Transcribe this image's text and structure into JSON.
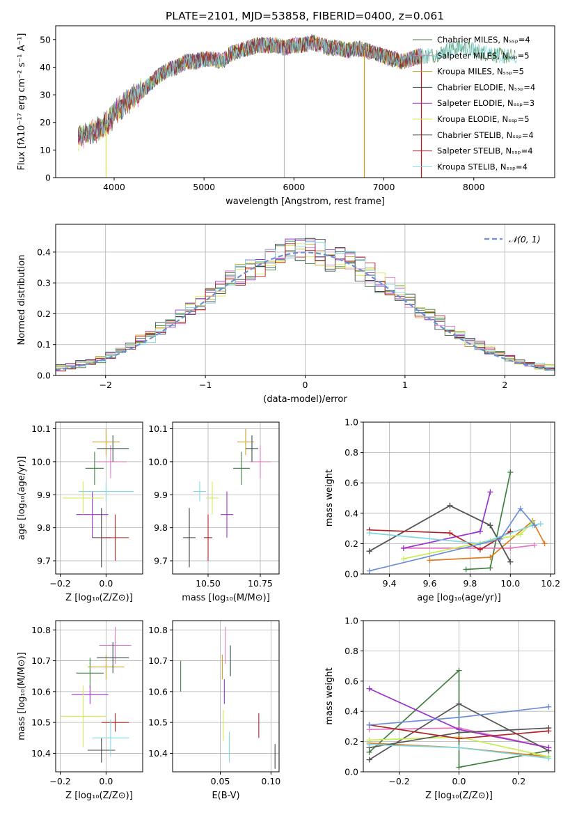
{
  "colors": [
    "#3f7f3f",
    "#e377c2",
    "#c8a02a",
    "#2f4f4f",
    "#9932cc",
    "#d4ea50",
    "#444444",
    "#b22222",
    "#7fd8e0"
  ],
  "chart_data": [
    {
      "id": "spectrum",
      "type": "line",
      "title": "PLATE=2101, MJD=53858, FIBERID=0400, z=0.061",
      "xlabel": "wavelength [Angstrom, rest frame]",
      "ylabel": "Flux [fλ10⁻¹⁷ erg cm⁻² s⁻¹ A⁻¹]",
      "xlim": [
        3350,
        8900
      ],
      "ylim": [
        0,
        55
      ],
      "xticks": [
        4000,
        5000,
        6000,
        7000,
        8000
      ],
      "yticks": [
        0,
        10,
        20,
        30,
        40,
        50
      ],
      "legend_position": "right",
      "series": [
        {
          "name": "Chabrier MILES, Nₛₛₚ=4"
        },
        {
          "name": "Salpeter MILES, Nₛₛₚ=5"
        },
        {
          "name": "Kroupa MILES, Nₛₛₚ=5"
        },
        {
          "name": "Chabrier ELODIE, Nₛₛₚ=4"
        },
        {
          "name": "Salpeter ELODIE, Nₛₛₚ=3"
        },
        {
          "name": "Kroupa ELODIE, Nₛₛₚ=5"
        },
        {
          "name": "Chabrier STELIB, Nₛₛₚ=4"
        },
        {
          "name": "Salpeter STELIB, Nₛₛₚ=4"
        },
        {
          "name": "Kroupa STELIB, Nₛₛₚ=4"
        }
      ],
      "continuum": {
        "x": [
          3600,
          3700,
          3800,
          3900,
          4000,
          4100,
          4200,
          4300,
          4400,
          4500,
          4600,
          4700,
          4800,
          4900,
          5000,
          5100,
          5200,
          5300,
          5400,
          5500,
          5600,
          5700,
          5800,
          5900,
          6000,
          6100,
          6200,
          6300,
          6400,
          6500,
          6600,
          6700,
          6800,
          6900,
          7000,
          7100,
          7200,
          7300,
          7400,
          7500,
          7600,
          7700,
          7800,
          7900,
          8000,
          8100,
          8200,
          8300,
          8400,
          8500
        ],
        "y": [
          14,
          16,
          17,
          19,
          23,
          26,
          29,
          31,
          34,
          37,
          39,
          40,
          42,
          42,
          43,
          43,
          42,
          45,
          46,
          47,
          48,
          48,
          48,
          47,
          48,
          48,
          49,
          48,
          47,
          47,
          46,
          47,
          46,
          45,
          44,
          43,
          42,
          43,
          44,
          44,
          45,
          46,
          47,
          47,
          46,
          45,
          45,
          44,
          44,
          43
        ]
      },
      "spikes_x": [
        3910,
        5893,
        6783,
        7418
      ]
    },
    {
      "id": "residuals",
      "type": "line",
      "xlabel": "(data-model)/error",
      "ylabel": "Normed distribution",
      "xlim": [
        -2.5,
        2.5
      ],
      "ylim": [
        0,
        0.49
      ],
      "xticks": [
        -2,
        -1,
        0,
        1,
        2
      ],
      "yticks": [
        0.0,
        0.1,
        0.2,
        0.3,
        0.4
      ],
      "legend": "𝒩(0, 1)",
      "legend_position": "top-right",
      "gaussian": {
        "mean": 0,
        "sigma": 1
      }
    },
    {
      "id": "age_vs_Z",
      "type": "scatter",
      "xlabel": "Z [log₁₀(Z/Z⊙)]",
      "ylabel": "age  [log₁₀(age/yr)]",
      "xlim": [
        -0.22,
        0.16
      ],
      "ylim": [
        9.66,
        10.12
      ],
      "xticks": [
        -0.2,
        0.0
      ],
      "yticks": [
        9.7,
        9.8,
        9.9,
        10.0,
        10.1
      ],
      "points": [
        {
          "x": -0.05,
          "y": 9.98,
          "xerr": 0.04,
          "yerr": 0.05
        },
        {
          "x": 0.02,
          "y": 10.0,
          "xerr": 0.07,
          "yerr": 0.05
        },
        {
          "x": 0.0,
          "y": 10.06,
          "xerr": 0.06,
          "yerr": 0.04
        },
        {
          "x": 0.03,
          "y": 10.04,
          "xerr": 0.07,
          "yerr": 0.04
        },
        {
          "x": -0.06,
          "y": 9.84,
          "xerr": 0.07,
          "yerr": 0.07
        },
        {
          "x": -0.1,
          "y": 9.89,
          "xerr": 0.09,
          "yerr": 0.05
        },
        {
          "x": -0.02,
          "y": 9.77,
          "xerr": 0.04,
          "yerr": 0.09
        },
        {
          "x": 0.04,
          "y": 9.77,
          "xerr": 0.06,
          "yerr": 0.07
        },
        {
          "x": 0.0,
          "y": 9.91,
          "xerr": 0.12,
          "yerr": 0.03
        }
      ]
    },
    {
      "id": "age_vs_mass",
      "type": "scatter",
      "xlabel": "mass [log₁₀(M/M⊙)]",
      "xlim": [
        10.33,
        10.84
      ],
      "ylim": [
        9.66,
        10.12
      ],
      "xticks": [
        10.5,
        10.75
      ],
      "yticks": [
        9.7,
        9.8,
        9.9,
        10.0,
        10.1
      ],
      "points": [
        {
          "x": 10.66,
          "y": 9.98,
          "xerr": 0.04,
          "yerr": 0.05
        },
        {
          "x": 10.75,
          "y": 10.0,
          "xerr": 0.05,
          "yerr": 0.05
        },
        {
          "x": 10.68,
          "y": 10.06,
          "xerr": 0.04,
          "yerr": 0.04
        },
        {
          "x": 10.71,
          "y": 10.04,
          "xerr": 0.03,
          "yerr": 0.04
        },
        {
          "x": 10.59,
          "y": 9.84,
          "xerr": 0.03,
          "yerr": 0.07
        },
        {
          "x": 10.52,
          "y": 9.89,
          "xerr": 0.03,
          "yerr": 0.05
        },
        {
          "x": 10.41,
          "y": 9.77,
          "xerr": 0.03,
          "yerr": 0.09
        },
        {
          "x": 10.5,
          "y": 9.77,
          "xerr": 0.02,
          "yerr": 0.07
        },
        {
          "x": 10.46,
          "y": 9.91,
          "xerr": 0.03,
          "yerr": 0.03
        }
      ]
    },
    {
      "id": "weight_vs_age",
      "type": "line",
      "xlabel": "age  [log₁₀(age/yr)]",
      "ylabel": "mass weight",
      "xlim": [
        9.27,
        10.22
      ],
      "ylim": [
        0.0,
        1.0
      ],
      "xticks": [
        9.4,
        9.6,
        9.8,
        10.0,
        10.2
      ],
      "yticks": [
        0.0,
        0.2,
        0.4,
        0.6,
        0.8,
        1.0
      ],
      "series": [
        {
          "x": [
            9.78,
            9.9,
            10.0
          ],
          "y": [
            0.03,
            0.04,
            0.67
          ]
        },
        {
          "x": [
            9.47,
            10.0,
            10.12
          ],
          "y": [
            0.17,
            0.17,
            0.19
          ]
        },
        {
          "x": [
            9.6,
            9.9,
            10.11,
            10.17
          ],
          "y": [
            0.09,
            0.11,
            0.35,
            0.2
          ]
        },
        {
          "x": [
            9.3,
            9.7,
            9.9,
            10.0
          ],
          "y": [
            0.15,
            0.45,
            0.32,
            0.08
          ]
        },
        {
          "x": [
            9.47,
            9.85,
            9.9
          ],
          "y": [
            0.17,
            0.28,
            0.54
          ]
        },
        {
          "x": [
            9.47,
            9.9,
            10.05,
            10.11
          ],
          "y": [
            0.1,
            0.22,
            0.26,
            0.34
          ]
        },
        {
          "x": [
            9.3,
            9.7,
            9.9,
            10.0
          ],
          "y": [
            0.15,
            0.45,
            0.32,
            0.08
          ]
        },
        {
          "x": [
            9.3,
            9.7,
            9.85,
            10.0
          ],
          "y": [
            0.29,
            0.27,
            0.16,
            0.28
          ]
        },
        {
          "x": [
            9.3,
            9.85,
            10.11,
            10.15
          ],
          "y": [
            0.27,
            0.2,
            0.32,
            0.33
          ]
        },
        {
          "x": [
            9.3,
            9.95,
            10.05,
            10.12
          ],
          "y": [
            0.02,
            0.23,
            0.43,
            0.32
          ]
        }
      ]
    },
    {
      "id": "mass_vs_Z",
      "type": "scatter",
      "xlabel": "Z [log₁₀(Z/Z⊙)]",
      "ylabel": "mass [log₁₀(M/M⊙)]",
      "xlim": [
        -0.22,
        0.16
      ],
      "ylim": [
        10.34,
        10.83
      ],
      "xticks": [
        -0.2,
        0.0
      ],
      "yticks": [
        10.4,
        10.5,
        10.6,
        10.7,
        10.8
      ],
      "points": [
        {
          "x": -0.07,
          "y": 10.66,
          "xerr": 0.06,
          "yerr": 0.05
        },
        {
          "x": 0.04,
          "y": 10.75,
          "xerr": 0.07,
          "yerr": 0.06
        },
        {
          "x": 0.0,
          "y": 10.68,
          "xerr": 0.08,
          "yerr": 0.04
        },
        {
          "x": 0.03,
          "y": 10.71,
          "xerr": 0.07,
          "yerr": 0.05
        },
        {
          "x": -0.07,
          "y": 10.59,
          "xerr": 0.08,
          "yerr": 0.03
        },
        {
          "x": -0.1,
          "y": 10.52,
          "xerr": 0.1,
          "yerr": 0.1
        },
        {
          "x": -0.02,
          "y": 10.41,
          "xerr": 0.06,
          "yerr": 0.04
        },
        {
          "x": 0.04,
          "y": 10.5,
          "xerr": 0.06,
          "yerr": 0.03
        },
        {
          "x": 0.02,
          "y": 10.45,
          "xerr": 0.08,
          "yerr": 0.06
        }
      ]
    },
    {
      "id": "mass_vs_EBV",
      "type": "scatter",
      "xlabel": "E(B-V)",
      "xlim": [
        0.003,
        0.108
      ],
      "ylim": [
        10.34,
        10.83
      ],
      "xticks": [
        0.05,
        0.1
      ],
      "yticks": [
        10.4,
        10.5,
        10.6,
        10.7,
        10.8
      ],
      "points": [
        {
          "x": 0.011,
          "y": 10.65,
          "xerr": 0,
          "yerr": 0.05
        },
        {
          "x": 0.055,
          "y": 10.75,
          "xerr": 0,
          "yerr": 0.06
        },
        {
          "x": 0.052,
          "y": 10.68,
          "xerr": 0,
          "yerr": 0.04
        },
        {
          "x": 0.06,
          "y": 10.7,
          "xerr": 0,
          "yerr": 0.05
        },
        {
          "x": 0.054,
          "y": 10.6,
          "xerr": 0,
          "yerr": 0.04
        },
        {
          "x": 0.053,
          "y": 10.49,
          "xerr": 0,
          "yerr": 0.05
        },
        {
          "x": 0.104,
          "y": 10.39,
          "xerr": 0,
          "yerr": 0.04
        },
        {
          "x": 0.088,
          "y": 10.49,
          "xerr": 0,
          "yerr": 0.04
        },
        {
          "x": 0.059,
          "y": 10.42,
          "xerr": 0,
          "yerr": 0.05
        }
      ]
    },
    {
      "id": "weight_vs_Z",
      "type": "line",
      "xlabel": "Z [log₁₀(Z/Z⊙)]",
      "ylabel": "mass weight",
      "xlim": [
        -0.32,
        0.32
      ],
      "ylim": [
        0.0,
        1.0
      ],
      "xticks": [
        -0.2,
        0.0,
        0.2
      ],
      "yticks": [
        0.0,
        0.2,
        0.4,
        0.6,
        0.8,
        1.0
      ],
      "series": [
        {
          "x": [
            -0.3,
            0.0,
            0.0,
            0.3
          ],
          "y": [
            0.13,
            0.67,
            0.03,
            0.14
          ]
        },
        {
          "x": [
            -0.3,
            0.0,
            0.3
          ],
          "y": [
            0.28,
            0.29,
            0.16
          ]
        },
        {
          "x": [
            -0.3,
            0.0,
            0.3
          ],
          "y": [
            0.19,
            0.16,
            0.1
          ]
        },
        {
          "x": [
            -0.3,
            0.0,
            0.3
          ],
          "y": [
            0.08,
            0.45,
            0.14
          ]
        },
        {
          "x": [
            -0.3,
            0.0,
            0.3
          ],
          "y": [
            0.55,
            0.28,
            0.16
          ]
        },
        {
          "x": [
            -0.3,
            0.0,
            0.3
          ],
          "y": [
            0.21,
            0.23,
            0.1
          ]
        },
        {
          "x": [
            -0.3,
            0.0,
            0.3
          ],
          "y": [
            0.16,
            0.26,
            0.29
          ]
        },
        {
          "x": [
            -0.3,
            0.0,
            0.3
          ],
          "y": [
            0.31,
            0.22,
            0.27
          ]
        },
        {
          "x": [
            -0.3,
            0.0,
            0.3
          ],
          "y": [
            0.18,
            0.16,
            0.09
          ]
        },
        {
          "x": [
            -0.3,
            0.0,
            0.3
          ],
          "y": [
            0.31,
            0.36,
            0.43
          ]
        }
      ]
    }
  ]
}
